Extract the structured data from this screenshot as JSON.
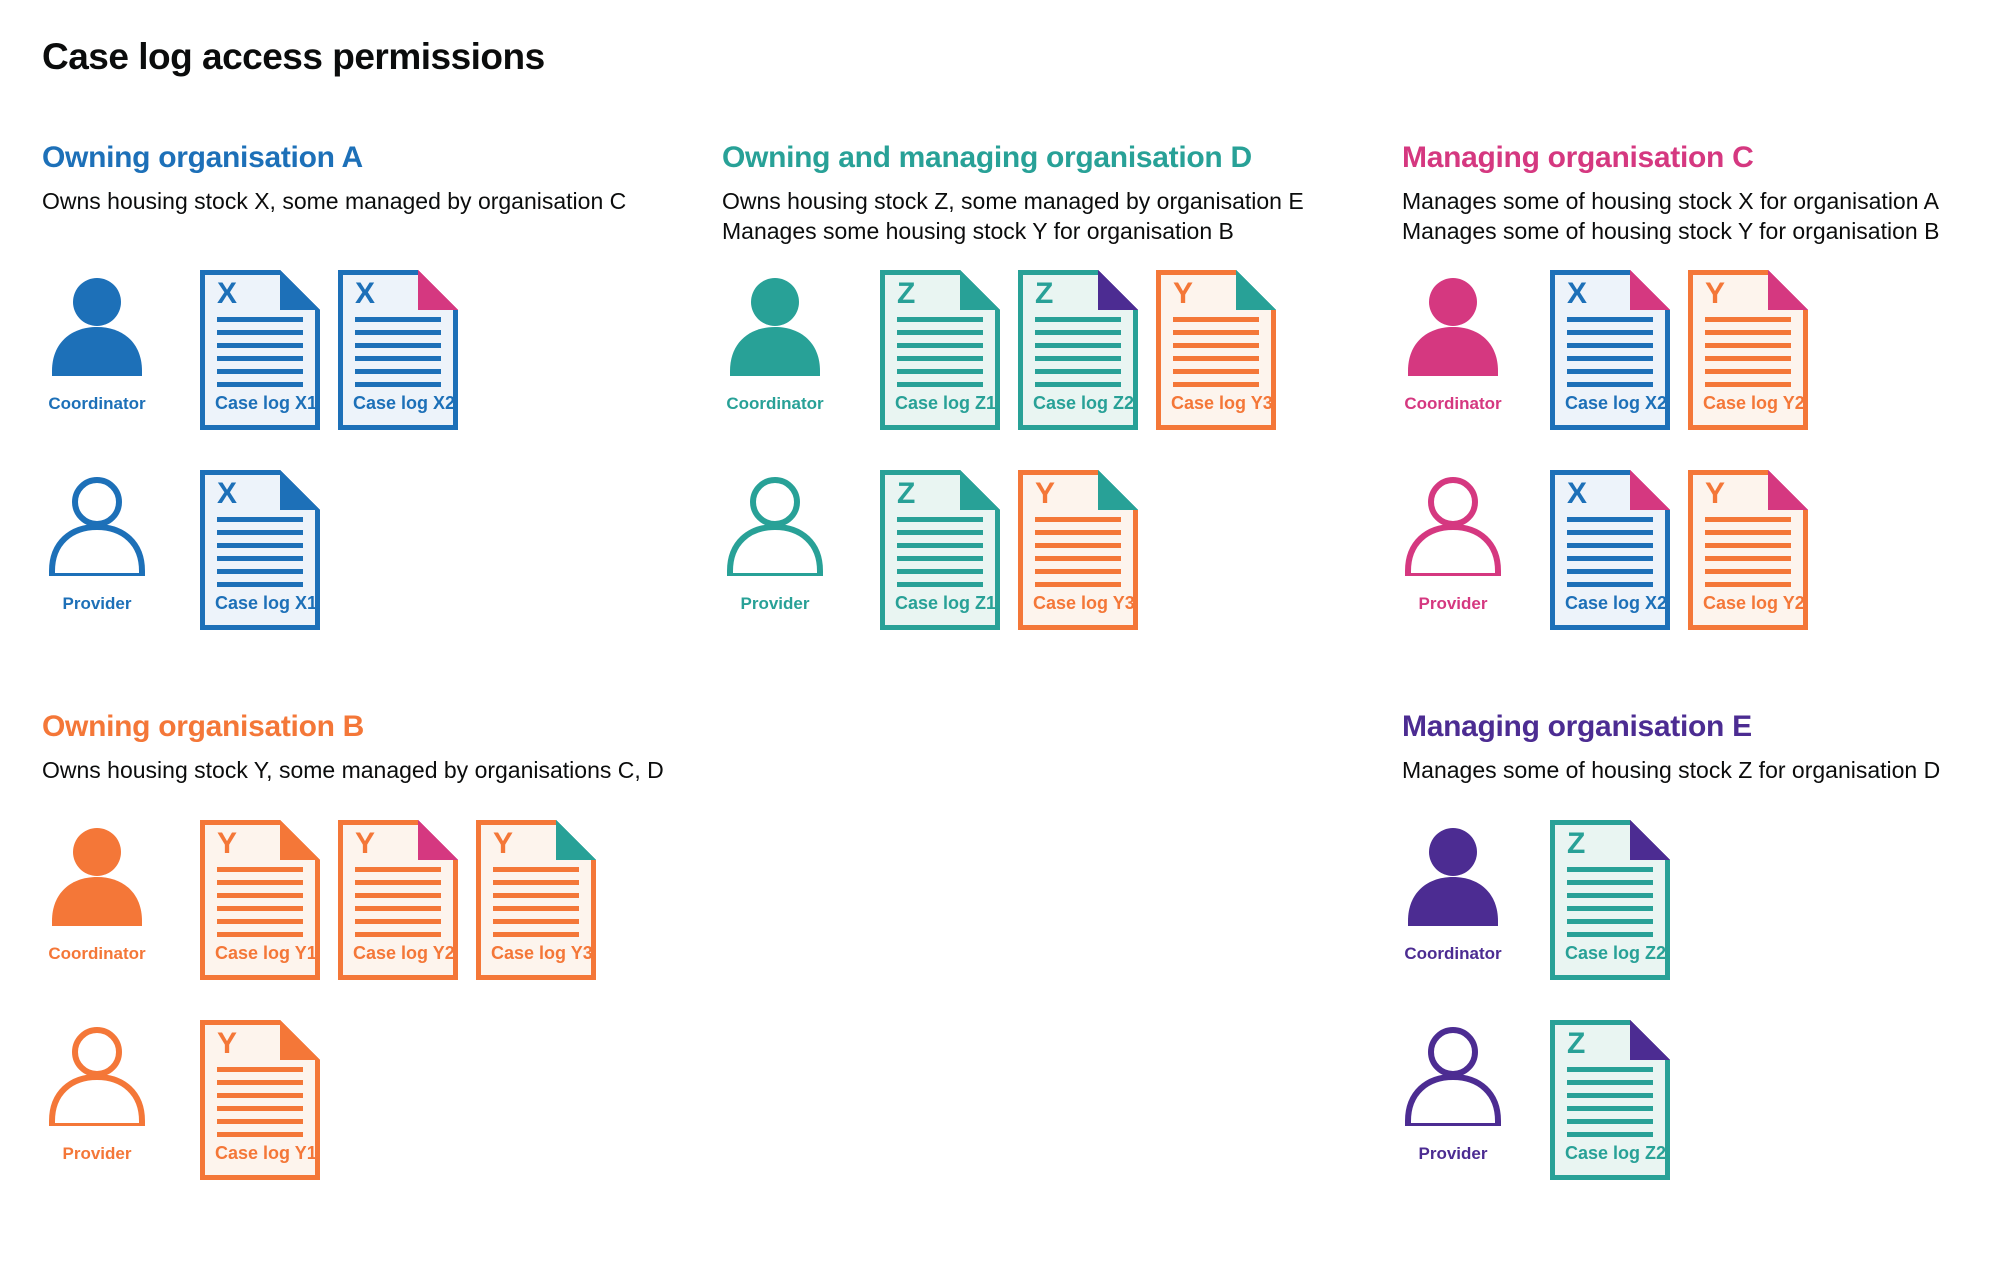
{
  "page_title": "Case log access permissions",
  "palette": {
    "blue": "#1d70b8",
    "teal": "#28a197",
    "orange": "#f47738",
    "pink": "#d53880",
    "purple": "#4c2c92",
    "text": "#0b0c0c",
    "doc_bg": {
      "blue": "#edf3fa",
      "teal": "#e9f5f2",
      "orange": "#fdf4ed"
    }
  },
  "sections": [
    {
      "id": "org-a",
      "title": "Owning organisation A",
      "color_key": "blue",
      "description": [
        "Owns housing stock X, some managed by organisation C"
      ],
      "column": 0,
      "band": 0,
      "rows": [
        {
          "role": "Coordinator",
          "icon_style": "filled",
          "docs": [
            {
              "letter": "X",
              "label": "Case log X1",
              "doc": "blue",
              "fold": "blue"
            },
            {
              "letter": "X",
              "label": "Case log X2",
              "doc": "blue",
              "fold": "pink"
            }
          ]
        },
        {
          "role": "Provider",
          "icon_style": "outline",
          "docs": [
            {
              "letter": "X",
              "label": "Case log X1",
              "doc": "blue",
              "fold": "blue"
            }
          ]
        }
      ]
    },
    {
      "id": "org-d",
      "title": "Owning and managing organisation D",
      "color_key": "teal",
      "description": [
        "Owns housing stock Z, some managed by organisation E",
        "Manages some housing stock Y for organisation B"
      ],
      "column": 1,
      "band": 0,
      "rows": [
        {
          "role": "Coordinator",
          "icon_style": "filled",
          "docs": [
            {
              "letter": "Z",
              "label": "Case log Z1",
              "doc": "teal",
              "fold": "teal"
            },
            {
              "letter": "Z",
              "label": "Case log Z2",
              "doc": "teal",
              "fold": "purple"
            },
            {
              "letter": "Y",
              "label": "Case log Y3",
              "doc": "orange",
              "fold": "teal"
            }
          ]
        },
        {
          "role": "Provider",
          "icon_style": "outline",
          "docs": [
            {
              "letter": "Z",
              "label": "Case log Z1",
              "doc": "teal",
              "fold": "teal"
            },
            {
              "letter": "Y",
              "label": "Case log Y3",
              "doc": "orange",
              "fold": "teal"
            }
          ]
        }
      ]
    },
    {
      "id": "org-c",
      "title": "Managing organisation C",
      "color_key": "pink",
      "description": [
        "Manages some of housing stock X for organisation A",
        "Manages some of housing stock Y for organisation B"
      ],
      "column": 2,
      "band": 0,
      "rows": [
        {
          "role": "Coordinator",
          "icon_style": "filled",
          "docs": [
            {
              "letter": "X",
              "label": "Case log X2",
              "doc": "blue",
              "fold": "pink"
            },
            {
              "letter": "Y",
              "label": "Case log Y2",
              "doc": "orange",
              "fold": "pink"
            }
          ]
        },
        {
          "role": "Provider",
          "icon_style": "outline",
          "docs": [
            {
              "letter": "X",
              "label": "Case log X2",
              "doc": "blue",
              "fold": "pink"
            },
            {
              "letter": "Y",
              "label": "Case log Y2",
              "doc": "orange",
              "fold": "pink"
            }
          ]
        }
      ]
    },
    {
      "id": "org-b",
      "title": "Owning organisation B",
      "color_key": "orange",
      "description": [
        "Owns housing stock Y, some managed by organisations C, D"
      ],
      "column": 0,
      "band": 1,
      "rows": [
        {
          "role": "Coordinator",
          "icon_style": "filled",
          "docs": [
            {
              "letter": "Y",
              "label": "Case log Y1",
              "doc": "orange",
              "fold": "orange"
            },
            {
              "letter": "Y",
              "label": "Case log Y2",
              "doc": "orange",
              "fold": "pink"
            },
            {
              "letter": "Y",
              "label": "Case log Y3",
              "doc": "orange",
              "fold": "teal"
            }
          ]
        },
        {
          "role": "Provider",
          "icon_style": "outline",
          "docs": [
            {
              "letter": "Y",
              "label": "Case log Y1",
              "doc": "orange",
              "fold": "orange"
            }
          ]
        }
      ]
    },
    {
      "id": "org-e",
      "title": "Managing organisation E",
      "color_key": "purple",
      "description": [
        "Manages some of housing stock Z for organisation D"
      ],
      "column": 2,
      "band": 1,
      "rows": [
        {
          "role": "Coordinator",
          "icon_style": "filled",
          "docs": [
            {
              "letter": "Z",
              "label": "Case log Z2",
              "doc": "teal",
              "fold": "purple"
            }
          ]
        },
        {
          "role": "Provider",
          "icon_style": "outline",
          "docs": [
            {
              "letter": "Z",
              "label": "Case log Z2",
              "doc": "teal",
              "fold": "purple"
            }
          ]
        }
      ]
    }
  ]
}
